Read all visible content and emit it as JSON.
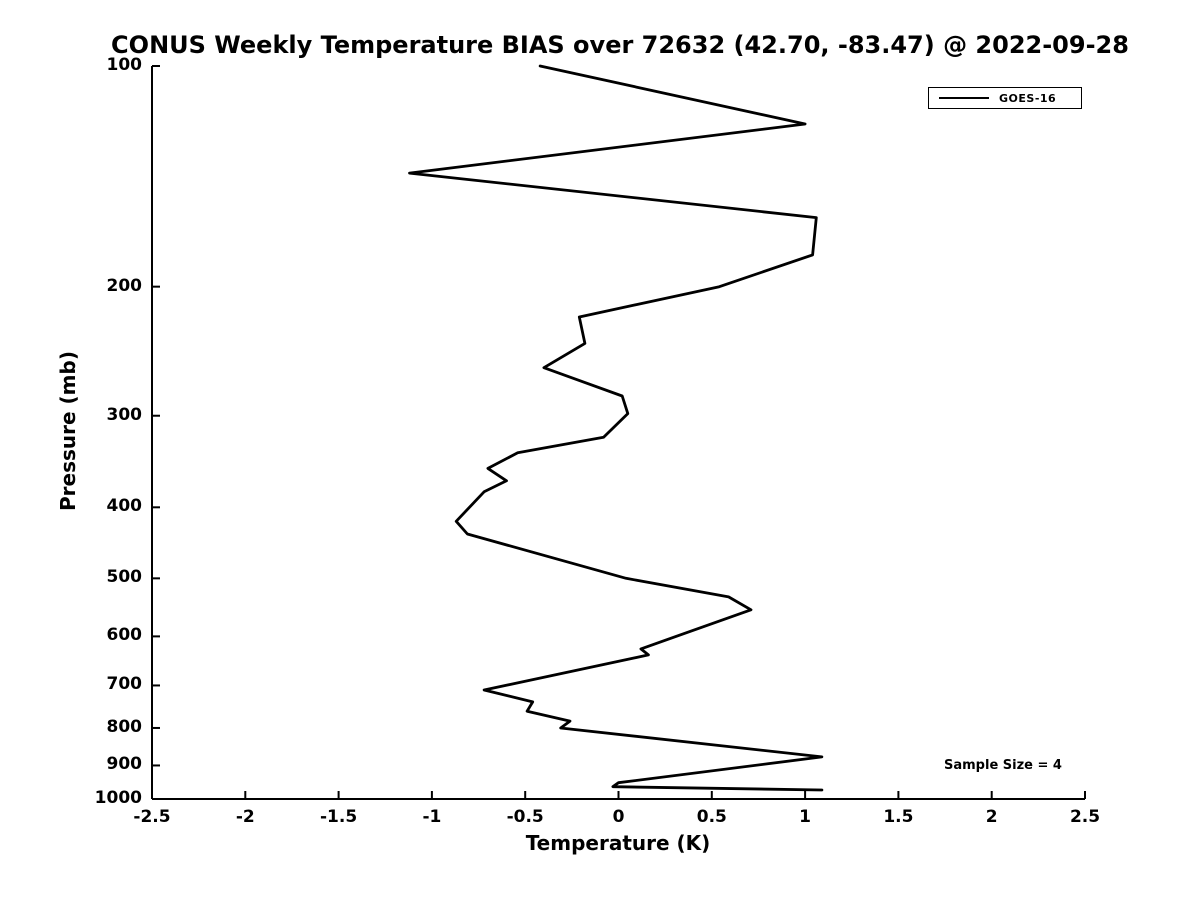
{
  "title": "CONUS Weekly Temperature BIAS over 72632 (42.70, -83.47) @ 2022-09-28",
  "axes": {
    "x_label": "Temperature (K)",
    "y_label": "Pressure (mb)",
    "x_ticks": [
      "-2.5",
      "-2",
      "-1.5",
      "-1",
      "-0.5",
      "0",
      "0.5",
      "1",
      "1.5",
      "2",
      "2.5"
    ],
    "y_ticks": [
      "100",
      "200",
      "300",
      "400",
      "500",
      "600",
      "700",
      "800",
      "900",
      "1000"
    ]
  },
  "legend": {
    "series_label": "GOES-16"
  },
  "annotation": {
    "sample_size": "Sample Size = 4"
  },
  "chart_data": {
    "type": "line",
    "title": "CONUS Weekly Temperature BIAS over 72632 (42.70, -83.47) @ 2022-09-28",
    "xlabel": "Temperature (K)",
    "ylabel": "Pressure (mb)",
    "xlim": [
      -2.5,
      2.5
    ],
    "ylim": [
      100,
      1000
    ],
    "y_scale": "log",
    "y_direction": "inverted (pressure increases downward)",
    "grid": false,
    "legend_position": "top-right",
    "line_color": "#000000",
    "annotations": [
      "Sample Size = 4"
    ],
    "series": [
      {
        "name": "GOES-16",
        "point_format": [
          "pressure_mb",
          "temperature_bias_K"
        ],
        "points": [
          [
            100,
            -0.42
          ],
          [
            120,
            1.0
          ],
          [
            140,
            -1.12
          ],
          [
            161,
            1.06
          ],
          [
            181,
            1.04
          ],
          [
            200,
            0.54
          ],
          [
            220,
            -0.21
          ],
          [
            239,
            -0.18
          ],
          [
            258,
            -0.4
          ],
          [
            282,
            0.02
          ],
          [
            298,
            0.05
          ],
          [
            321,
            -0.08
          ],
          [
            337,
            -0.54
          ],
          [
            354,
            -0.7
          ],
          [
            368,
            -0.6
          ],
          [
            381,
            -0.72
          ],
          [
            418,
            -0.87
          ],
          [
            435,
            -0.81
          ],
          [
            500,
            0.04
          ],
          [
            530,
            0.59
          ],
          [
            552,
            0.71
          ],
          [
            624,
            0.12
          ],
          [
            636,
            0.16
          ],
          [
            710,
            -0.72
          ],
          [
            737,
            -0.46
          ],
          [
            759,
            -0.49
          ],
          [
            783,
            -0.26
          ],
          [
            800,
            -0.31
          ],
          [
            876,
            1.09
          ],
          [
            950,
            0.0
          ],
          [
            962,
            -0.03
          ],
          [
            972,
            1.09
          ]
        ]
      }
    ]
  }
}
